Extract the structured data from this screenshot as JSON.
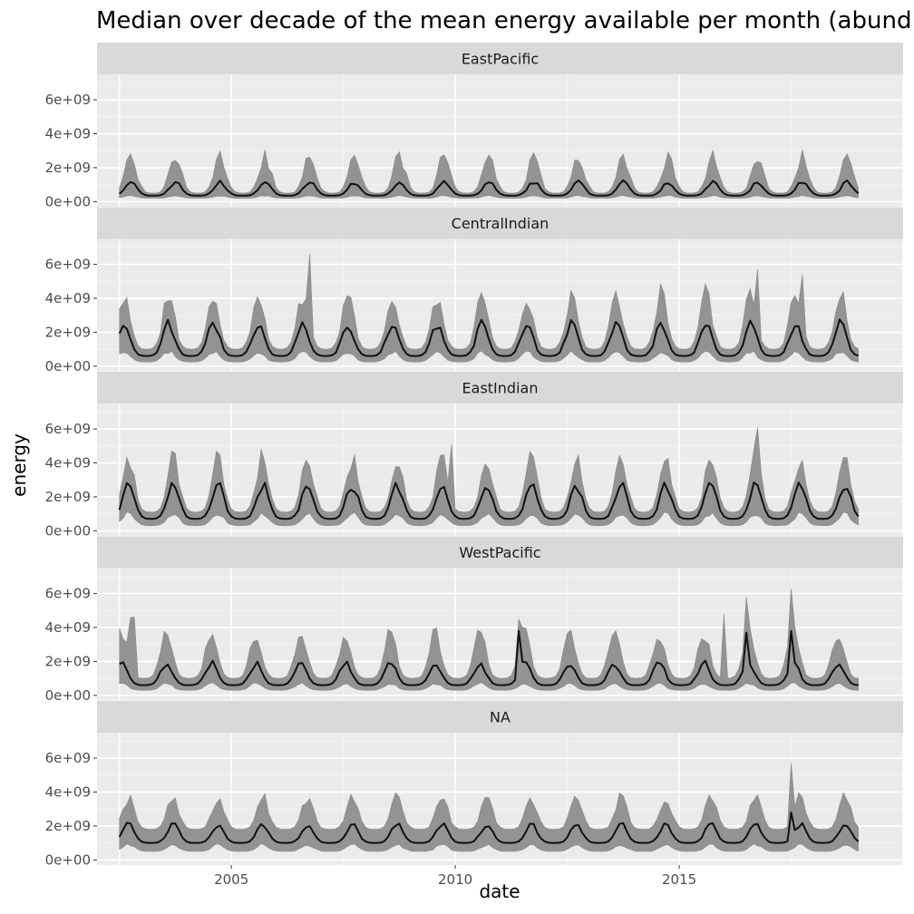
{
  "chart_data": {
    "type": "area",
    "title": "Median over decade of the mean energy available per month (abund",
    "xlabel": "date",
    "ylabel": "energy",
    "xlim": [
      2002.0,
      2020.0
    ],
    "ylim": [
      -300000000,
      7500000000
    ],
    "x_ticks": [
      {
        "value": 2005,
        "label": "2005"
      },
      {
        "value": 2010,
        "label": "2010"
      },
      {
        "value": 2015,
        "label": "2015"
      }
    ],
    "y_ticks": [
      {
        "value": 0,
        "label": "0e+00"
      },
      {
        "value": 2000000000,
        "label": "2e+09"
      },
      {
        "value": 4000000000,
        "label": "4e+09"
      },
      {
        "value": 6000000000,
        "label": "6e+09"
      }
    ],
    "x_start": 2002.5,
    "x_end": 2019.0,
    "x_step_months": 1,
    "panels": [
      {
        "name": "EastPacific",
        "peak_phase": 0.75,
        "median_base": 350000000,
        "median_amp": 800000000,
        "lower_base": 200000000,
        "lower_amp": 150000000,
        "upper_base": 500000000,
        "upper_amp": 2200000000,
        "spikes": []
      },
      {
        "name": "CentralIndian",
        "peak_phase": 0.6,
        "median_base": 600000000,
        "median_amp": 1900000000,
        "lower_base": 250000000,
        "lower_amp": 600000000,
        "upper_base": 1000000000,
        "upper_amp": 3300000000,
        "spikes": [
          {
            "x": 2006.75,
            "upper": 6600000000
          },
          {
            "x": 2016.75,
            "upper": 5700000000
          },
          {
            "x": 2017.75,
            "upper": 5400000000
          }
        ]
      },
      {
        "name": "EastIndian",
        "peak_phase": 0.7,
        "median_base": 700000000,
        "median_amp": 2000000000,
        "lower_base": 300000000,
        "lower_amp": 700000000,
        "upper_base": 1100000000,
        "upper_amp": 3200000000,
        "spikes": [
          {
            "x": 2016.75,
            "upper": 6100000000
          },
          {
            "x": 2009.9,
            "upper": 5100000000
          }
        ]
      },
      {
        "name": "WestPacific",
        "peak_phase": 0.55,
        "median_base": 600000000,
        "median_amp": 1300000000,
        "lower_base": 300000000,
        "lower_amp": 400000000,
        "upper_base": 1000000000,
        "upper_amp": 2700000000,
        "spikes": [
          {
            "x": 2002.8,
            "upper": 4600000000
          },
          {
            "x": 2011.4,
            "upper": 4500000000,
            "median": 3800000000
          },
          {
            "x": 2016.5,
            "upper": 5800000000,
            "median": 3700000000
          },
          {
            "x": 2017.5,
            "upper": 6300000000,
            "median": 3800000000
          },
          {
            "x": 2016.0,
            "upper": 4800000000
          }
        ]
      },
      {
        "name": "NA",
        "peak_phase": 0.7,
        "median_base": 1000000000,
        "median_amp": 1100000000,
        "lower_base": 500000000,
        "lower_amp": 400000000,
        "upper_base": 1800000000,
        "upper_amp": 1900000000,
        "spikes": [
          {
            "x": 2017.5,
            "upper": 5700000000,
            "median": 2800000000
          }
        ]
      }
    ]
  }
}
